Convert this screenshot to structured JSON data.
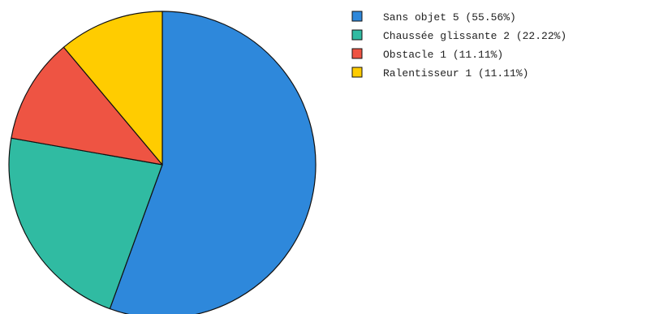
{
  "chart_data": {
    "type": "pie",
    "title": "",
    "categories": [
      "Sans objet",
      "Chaussée glissante",
      "Obstacle",
      "Ralentisseur"
    ],
    "values": [
      5,
      2,
      1,
      1
    ],
    "percentages": [
      "55.56%",
      "22.22%",
      "11.11%",
      "11.11%"
    ],
    "colors": [
      "#2e88db",
      "#30bba2",
      "#ee5443",
      "#ffcc00"
    ],
    "legend": {
      "placement": "top-right",
      "entries": [
        "Sans objet 5 (55.56%)",
        "Chaussée glissante 2 (22.22%)",
        "Obstacle 1 (11.11%)",
        "Ralentisseur 1 (11.11%)"
      ]
    },
    "start_angle": "top",
    "direction": "clockwise"
  }
}
